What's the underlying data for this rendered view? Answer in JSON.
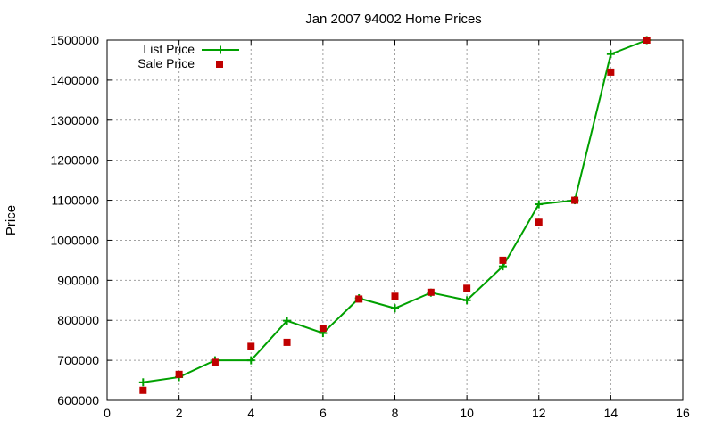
{
  "chart_data": {
    "type": "line",
    "title": "Jan 2007 94002 Home Prices",
    "xlabel": "",
    "ylabel": "Price",
    "xlim": [
      0,
      16
    ],
    "ylim": [
      600000,
      1500000
    ],
    "xticks": [
      0,
      2,
      4,
      6,
      8,
      10,
      12,
      14,
      16
    ],
    "yticks": [
      600000,
      700000,
      800000,
      900000,
      1000000,
      1100000,
      1200000,
      1300000,
      1400000,
      1500000
    ],
    "grid": true,
    "legend": "top-left",
    "series": [
      {
        "name": "List Price",
        "style": "linespoints",
        "marker": "plus",
        "color": "#00a000",
        "x": [
          1,
          2,
          3,
          4,
          5,
          6,
          7,
          8,
          9,
          10,
          11,
          12,
          13,
          14,
          15
        ],
        "y": [
          645000,
          658000,
          700000,
          700000,
          799000,
          768000,
          855000,
          830000,
          869000,
          850000,
          935000,
          1090000,
          1100000,
          1465000,
          1500000
        ]
      },
      {
        "name": "Sale Price",
        "style": "points",
        "marker": "square",
        "color": "#c00000",
        "x": [
          1,
          2,
          3,
          4,
          5,
          6,
          7,
          8,
          9,
          10,
          11,
          12,
          13,
          14,
          15
        ],
        "y": [
          625000,
          665000,
          695000,
          735000,
          745000,
          780000,
          853000,
          860000,
          870000,
          880000,
          950000,
          1045000,
          1100000,
          1420000,
          1500000
        ]
      }
    ]
  }
}
